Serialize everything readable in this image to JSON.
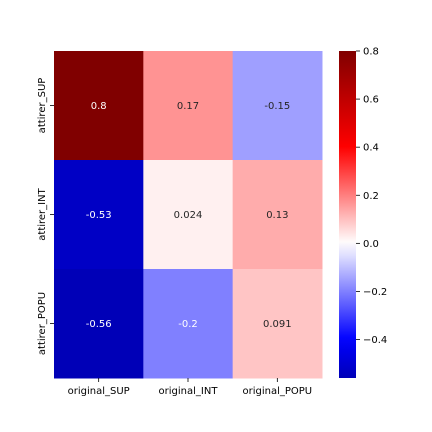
{
  "chart_data": {
    "type": "heatmap",
    "title": "",
    "xlabel": "",
    "ylabel": "",
    "x_categories": [
      "original_SUP",
      "original_INT",
      "original_POPU"
    ],
    "y_categories": [
      "attirer_SUP",
      "attirer_INT",
      "attirer_POPU"
    ],
    "values": [
      [
        0.8,
        0.17,
        -0.15
      ],
      [
        -0.53,
        0.024,
        0.13
      ],
      [
        -0.56,
        -0.2,
        0.091
      ]
    ],
    "value_labels": [
      [
        "0.8",
        "0.17",
        "-0.15"
      ],
      [
        "-0.53",
        "0.024",
        "0.13"
      ],
      [
        "-0.56",
        "-0.2",
        "0.091"
      ]
    ],
    "colormap": "seismic",
    "vmin": -0.56,
    "vmax": 0.8,
    "colorbar": {
      "ticks": [
        0.8,
        0.6,
        0.4,
        0.2,
        0.0,
        -0.2,
        -0.4
      ],
      "tick_labels": [
        "0.8",
        "0.6",
        "0.4",
        "0.2",
        "0.0",
        "−0.2",
        "−0.4"
      ]
    },
    "grid": false
  }
}
